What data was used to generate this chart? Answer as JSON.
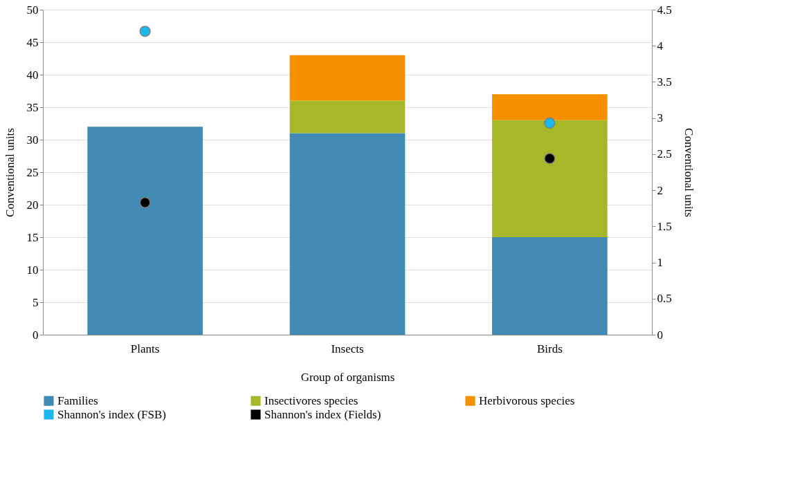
{
  "chart_data": {
    "type": "bar",
    "stacked": true,
    "xlabel": "Group of organisms",
    "ylabel": "Conventional units",
    "y2label": "Conventional units",
    "categories": [
      "Plants",
      "Insects",
      "Birds"
    ],
    "series": [
      {
        "name": "Families",
        "color": "#418ab3",
        "values": [
          32,
          31,
          15
        ]
      },
      {
        "name": "Insectivores species",
        "color": "#a6b727",
        "values": [
          0,
          5,
          18
        ]
      },
      {
        "name": "Herbivorous species",
        "color": "#f59100",
        "values": [
          0,
          7,
          4
        ]
      },
      {
        "name": "Shannon's index (FSB)",
        "type": "scatter",
        "axis": "y2",
        "color": "#1cb8ed",
        "values": [
          4.2,
          null,
          2.93
        ]
      },
      {
        "name": "Shannon's index (Fields)",
        "type": "scatter",
        "axis": "y2",
        "color": "#000000",
        "values": [
          1.83,
          null,
          2.44
        ]
      }
    ],
    "ylim": [
      0,
      50
    ],
    "yticks": [
      0,
      5,
      10,
      15,
      20,
      25,
      30,
      35,
      40,
      45,
      50
    ],
    "y2lim": [
      0,
      4.5
    ],
    "y2ticks": [
      0,
      0.5,
      1,
      1.5,
      2,
      2.5,
      3,
      3.5,
      4,
      4.5
    ],
    "marker": "circle",
    "grid": "y",
    "legend": "bottom"
  }
}
